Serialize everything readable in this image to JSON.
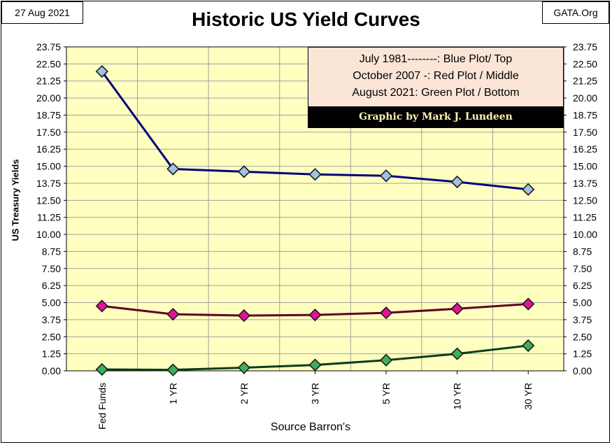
{
  "header": {
    "date": "27 Aug 2021",
    "source": "GATA.Org",
    "title": "Historic US Yield Curves"
  },
  "legend": {
    "lines": [
      "July 1981--------:  Blue Plot/ Top",
      "October 2007  -: Red Plot / Middle",
      "August 2021: Green Plot / Bottom"
    ],
    "credit": "Graphic by Mark J. Lundeen"
  },
  "colors": {
    "plot_bg": "#ffffc0",
    "grid": "#a0a0a0",
    "blue_line": "#000080",
    "blue_marker": "#9dc3e6",
    "red_line": "#600020",
    "red_marker": "#e6109a",
    "green_line": "#0a3d1a",
    "green_marker": "#3fae5a"
  },
  "chart_data": {
    "type": "line",
    "title": "Historic US Yield Curves",
    "xlabel": "Source Barron's",
    "ylabel": "US Treasury Yields",
    "categories": [
      "Fed Funds",
      "1 YR",
      "2 YR",
      "3 YR",
      "5 YR",
      "10 YR",
      "30 YR"
    ],
    "ylim": [
      0,
      23.75
    ],
    "yticks": [
      "0.00",
      "1.25",
      "2.50",
      "3.75",
      "5.00",
      "6.25",
      "7.50",
      "8.75",
      "10.00",
      "11.25",
      "12.50",
      "13.75",
      "15.00",
      "16.25",
      "17.50",
      "18.75",
      "20.00",
      "21.25",
      "22.50",
      "23.75"
    ],
    "grid": true,
    "series": [
      {
        "name": "July 1981",
        "color": "blue",
        "values": [
          21.95,
          14.8,
          14.6,
          14.4,
          14.3,
          13.85,
          13.3
        ]
      },
      {
        "name": "October 2007",
        "color": "red",
        "values": [
          4.75,
          4.15,
          4.05,
          4.1,
          4.25,
          4.55,
          4.9
        ]
      },
      {
        "name": "August 2021",
        "color": "green",
        "values": [
          0.1,
          0.07,
          0.23,
          0.43,
          0.78,
          1.25,
          1.85
        ]
      }
    ]
  }
}
